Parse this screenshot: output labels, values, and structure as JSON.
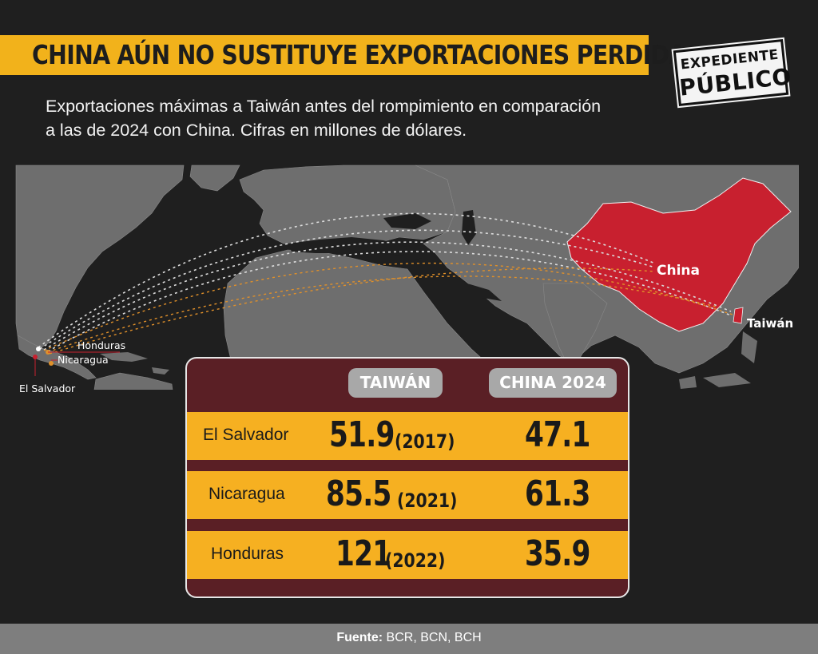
{
  "header": {
    "title": "CHINA AÚN NO SUSTITUYE EXPORTACIONES PERDIDAS",
    "subtitle_line1": "Exportaciones máximas a Taiwán antes del rompimiento en comparación",
    "subtitle_line2": "a las de 2024 con China. Cifras en millones de dólares."
  },
  "logo": {
    "line1": "EXPEDIENTE",
    "line2": "PÚBLICO"
  },
  "map": {
    "labels": {
      "china": "China",
      "taiwan": "Taiwán",
      "honduras": "Honduras",
      "nicaragua": "Nicaragua",
      "el_salvador": "El Salvador"
    },
    "colors": {
      "land": "#6e6e6e",
      "china": "#c8202f",
      "route_white": "#dcdcdc",
      "route_orange": "#e0902a"
    }
  },
  "chart_data": {
    "type": "table",
    "columns": [
      "TAIWÁN",
      "CHINA 2024"
    ],
    "rows": [
      {
        "country": "El Salvador",
        "taiwan": "51.9",
        "taiwan_year": "(2017)",
        "china_2024": "47.1"
      },
      {
        "country": "Nicaragua",
        "taiwan": "85.5",
        "taiwan_year": "(2021)",
        "china_2024": "61.3"
      },
      {
        "country": "Honduras",
        "taiwan": "121",
        "taiwan_year": "(2022)",
        "china_2024": "35.9"
      }
    ]
  },
  "footer": {
    "source_label": "Fuente:",
    "source_value": "BCR, BCN, BCH"
  },
  "colors": {
    "accent": "#f2b21b",
    "table_bg": "#5a1f25",
    "row_bg": "#f6b021",
    "pill": "#a8a8a8"
  }
}
